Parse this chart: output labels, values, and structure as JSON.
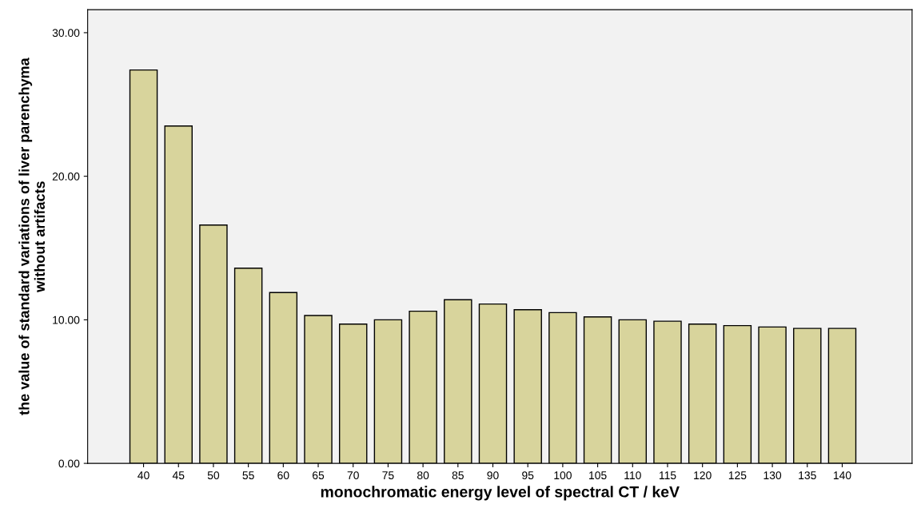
{
  "chart_data": {
    "type": "bar",
    "xlabel": "monochromatic energy level of spectral CT / keV",
    "ylabel": "the value of standard variations of liver parenchyma\nwithout artifacts",
    "categories": [
      "40",
      "45",
      "50",
      "55",
      "60",
      "65",
      "70",
      "75",
      "80",
      "85",
      "90",
      "95",
      "100",
      "105",
      "110",
      "115",
      "120",
      "125",
      "130",
      "135",
      "140"
    ],
    "values": [
      27.4,
      23.5,
      16.6,
      13.6,
      11.9,
      10.3,
      9.7,
      10.0,
      10.6,
      11.4,
      11.1,
      10.7,
      10.5,
      10.2,
      10.0,
      9.9,
      9.7,
      9.6,
      9.5,
      9.4,
      9.4
    ],
    "color": "#d8d49c",
    "ylim": [
      0,
      31.6
    ],
    "yticks": [
      {
        "value": 0,
        "label": "0.00"
      },
      {
        "value": 10,
        "label": "10.00"
      },
      {
        "value": 20,
        "label": "20.00"
      },
      {
        "value": 30,
        "label": "30.00"
      }
    ],
    "grid": false,
    "legend": false
  }
}
